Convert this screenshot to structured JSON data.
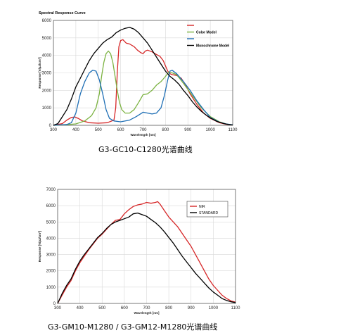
{
  "captions": {
    "chart1": "G3-GC10-C1280光谱曲线",
    "chart2": "G3-GM10-M1280 / G3-GM12-M1280光谱曲线"
  },
  "chart_data": [
    {
      "type": "line",
      "title": "Spectral Response Curve",
      "xlabel": "Wavelength [nm]",
      "ylabel": "Response [V/µJ/cm²]",
      "xlim": [
        300,
        1100
      ],
      "ylim": [
        0,
        6000
      ],
      "xticks": [
        300,
        400,
        500,
        600,
        700,
        800,
        900,
        1000,
        1100
      ],
      "yticks": [
        0,
        1000,
        2000,
        3000,
        4000,
        5000,
        6000
      ],
      "grid": true,
      "legend_position": "top-right",
      "series": [
        {
          "name": "",
          "color": "#d62728",
          "points": [
            [
              300,
              0
            ],
            [
              340,
              100
            ],
            [
              360,
              300
            ],
            [
              380,
              450
            ],
            [
              395,
              480
            ],
            [
              410,
              400
            ],
            [
              430,
              250
            ],
            [
              460,
              150
            ],
            [
              500,
              120
            ],
            [
              540,
              150
            ],
            [
              570,
              300
            ],
            [
              578,
              1000
            ],
            [
              585,
              3000
            ],
            [
              592,
              4500
            ],
            [
              600,
              4850
            ],
            [
              610,
              4900
            ],
            [
              625,
              4700
            ],
            [
              640,
              4650
            ],
            [
              660,
              4500
            ],
            [
              675,
              4300
            ],
            [
              690,
              4150
            ],
            [
              700,
              4100
            ],
            [
              710,
              4250
            ],
            [
              720,
              4300
            ],
            [
              740,
              4200
            ],
            [
              760,
              4050
            ],
            [
              775,
              3950
            ],
            [
              790,
              3700
            ],
            [
              800,
              3400
            ],
            [
              810,
              3100
            ],
            [
              820,
              2950
            ],
            [
              830,
              2900
            ],
            [
              850,
              2850
            ],
            [
              870,
              2700
            ],
            [
              890,
              2300
            ],
            [
              910,
              1800
            ],
            [
              940,
              1200
            ],
            [
              970,
              700
            ],
            [
              1000,
              400
            ],
            [
              1040,
              150
            ],
            [
              1070,
              60
            ],
            [
              1100,
              20
            ]
          ]
        },
        {
          "name": "Color Model",
          "color": "#7cb342",
          "points": [
            [
              300,
              0
            ],
            [
              350,
              30
            ],
            [
              400,
              80
            ],
            [
              440,
              250
            ],
            [
              470,
              550
            ],
            [
              490,
              1000
            ],
            [
              505,
              1800
            ],
            [
              515,
              2800
            ],
            [
              525,
              3600
            ],
            [
              535,
              4100
            ],
            [
              545,
              4250
            ],
            [
              555,
              4100
            ],
            [
              565,
              3600
            ],
            [
              575,
              2800
            ],
            [
              585,
              2000
            ],
            [
              595,
              1300
            ],
            [
              605,
              900
            ],
            [
              620,
              700
            ],
            [
              640,
              700
            ],
            [
              660,
              900
            ],
            [
              680,
              1300
            ],
            [
              700,
              1750
            ],
            [
              720,
              1800
            ],
            [
              740,
              2000
            ],
            [
              760,
              2300
            ],
            [
              780,
              2500
            ],
            [
              800,
              2800
            ],
            [
              815,
              3050
            ],
            [
              830,
              3000
            ],
            [
              850,
              2900
            ],
            [
              880,
              2400
            ],
            [
              920,
              1700
            ],
            [
              960,
              1000
            ],
            [
              1000,
              500
            ],
            [
              1040,
              200
            ],
            [
              1070,
              80
            ],
            [
              1100,
              20
            ]
          ]
        },
        {
          "name": "",
          "color": "#1f6fb5",
          "points": [
            [
              300,
              0
            ],
            [
              360,
              50
            ],
            [
              380,
              150
            ],
            [
              400,
              700
            ],
            [
              420,
              1800
            ],
            [
              440,
              2500
            ],
            [
              460,
              3000
            ],
            [
              475,
              3150
            ],
            [
              490,
              3100
            ],
            [
              505,
              2600
            ],
            [
              520,
              1800
            ],
            [
              535,
              900
            ],
            [
              550,
              400
            ],
            [
              570,
              250
            ],
            [
              600,
              200
            ],
            [
              640,
              300
            ],
            [
              670,
              500
            ],
            [
              700,
              750
            ],
            [
              720,
              700
            ],
            [
              740,
              650
            ],
            [
              760,
              700
            ],
            [
              780,
              1000
            ],
            [
              795,
              1700
            ],
            [
              810,
              2600
            ],
            [
              820,
              3100
            ],
            [
              830,
              3150
            ],
            [
              850,
              2950
            ],
            [
              880,
              2500
            ],
            [
              910,
              2000
            ],
            [
              940,
              1400
            ],
            [
              970,
              900
            ],
            [
              1000,
              450
            ],
            [
              1040,
              180
            ],
            [
              1070,
              80
            ],
            [
              1100,
              30
            ]
          ]
        },
        {
          "name": "Monochrome Model",
          "color": "#000000",
          "points": [
            [
              300,
              0
            ],
            [
              320,
              100
            ],
            [
              340,
              500
            ],
            [
              360,
              900
            ],
            [
              380,
              1500
            ],
            [
              400,
              2200
            ],
            [
              420,
              2700
            ],
            [
              440,
              3200
            ],
            [
              460,
              3700
            ],
            [
              480,
              4100
            ],
            [
              500,
              4400
            ],
            [
              520,
              4700
            ],
            [
              540,
              4900
            ],
            [
              560,
              5050
            ],
            [
              580,
              5300
            ],
            [
              600,
              5450
            ],
            [
              620,
              5550
            ],
            [
              640,
              5600
            ],
            [
              660,
              5500
            ],
            [
              680,
              5300
            ],
            [
              700,
              5000
            ],
            [
              720,
              4700
            ],
            [
              740,
              4300
            ],
            [
              760,
              3900
            ],
            [
              780,
              3500
            ],
            [
              800,
              3100
            ],
            [
              820,
              2800
            ],
            [
              840,
              2600
            ],
            [
              860,
              2350
            ],
            [
              880,
              2000
            ],
            [
              900,
              1700
            ],
            [
              920,
              1350
            ],
            [
              940,
              1050
            ],
            [
              960,
              800
            ],
            [
              980,
              600
            ],
            [
              1000,
              420
            ],
            [
              1030,
              220
            ],
            [
              1060,
              100
            ],
            [
              1080,
              50
            ],
            [
              1100,
              20
            ]
          ]
        }
      ]
    },
    {
      "type": "line",
      "title": "",
      "xlabel": "Wavelength [nm]",
      "ylabel": "Response [V/µJ/cm²]",
      "xlim": [
        300,
        1100
      ],
      "ylim": [
        0,
        7000
      ],
      "xticks": [
        300,
        400,
        500,
        600,
        700,
        800,
        900,
        1000,
        1100
      ],
      "yticks": [
        0,
        1000,
        2000,
        3000,
        4000,
        5000,
        6000,
        7000
      ],
      "grid": true,
      "legend_position": "top-right",
      "series": [
        {
          "name": "NIR",
          "color": "#d62728",
          "points": [
            [
              300,
              0
            ],
            [
              320,
              500
            ],
            [
              340,
              1000
            ],
            [
              360,
              1400
            ],
            [
              380,
              2000
            ],
            [
              400,
              2500
            ],
            [
              420,
              2900
            ],
            [
              440,
              3300
            ],
            [
              460,
              3650
            ],
            [
              480,
              4000
            ],
            [
              500,
              4250
            ],
            [
              520,
              4550
            ],
            [
              540,
              4850
            ],
            [
              560,
              5100
            ],
            [
              580,
              5150
            ],
            [
              600,
              5500
            ],
            [
              620,
              5750
            ],
            [
              640,
              5950
            ],
            [
              660,
              6050
            ],
            [
              680,
              6100
            ],
            [
              700,
              6200
            ],
            [
              720,
              6150
            ],
            [
              740,
              6200
            ],
            [
              750,
              6250
            ],
            [
              760,
              6100
            ],
            [
              780,
              5700
            ],
            [
              800,
              5300
            ],
            [
              820,
              5000
            ],
            [
              840,
              4700
            ],
            [
              860,
              4300
            ],
            [
              880,
              3900
            ],
            [
              900,
              3500
            ],
            [
              920,
              3000
            ],
            [
              940,
              2500
            ],
            [
              960,
              2000
            ],
            [
              980,
              1500
            ],
            [
              1000,
              1100
            ],
            [
              1020,
              800
            ],
            [
              1040,
              500
            ],
            [
              1060,
              300
            ],
            [
              1080,
              150
            ],
            [
              1100,
              80
            ]
          ]
        },
        {
          "name": "STANDARD",
          "color": "#000000",
          "points": [
            [
              300,
              0
            ],
            [
              320,
              600
            ],
            [
              340,
              1100
            ],
            [
              360,
              1500
            ],
            [
              380,
              2100
            ],
            [
              400,
              2600
            ],
            [
              420,
              3000
            ],
            [
              440,
              3350
            ],
            [
              460,
              3700
            ],
            [
              480,
              4050
            ],
            [
              500,
              4300
            ],
            [
              520,
              4600
            ],
            [
              540,
              4850
            ],
            [
              560,
              5000
            ],
            [
              580,
              5100
            ],
            [
              600,
              5200
            ],
            [
              620,
              5300
            ],
            [
              640,
              5500
            ],
            [
              660,
              5550
            ],
            [
              680,
              5450
            ],
            [
              700,
              5350
            ],
            [
              720,
              5150
            ],
            [
              740,
              4950
            ],
            [
              760,
              4700
            ],
            [
              780,
              4400
            ],
            [
              800,
              4050
            ],
            [
              820,
              3700
            ],
            [
              840,
              3300
            ],
            [
              860,
              2900
            ],
            [
              880,
              2550
            ],
            [
              900,
              2200
            ],
            [
              920,
              1850
            ],
            [
              940,
              1550
            ],
            [
              960,
              1250
            ],
            [
              980,
              950
            ],
            [
              1000,
              700
            ],
            [
              1020,
              500
            ],
            [
              1040,
              300
            ],
            [
              1060,
              180
            ],
            [
              1080,
              100
            ],
            [
              1100,
              50
            ]
          ]
        }
      ]
    }
  ]
}
